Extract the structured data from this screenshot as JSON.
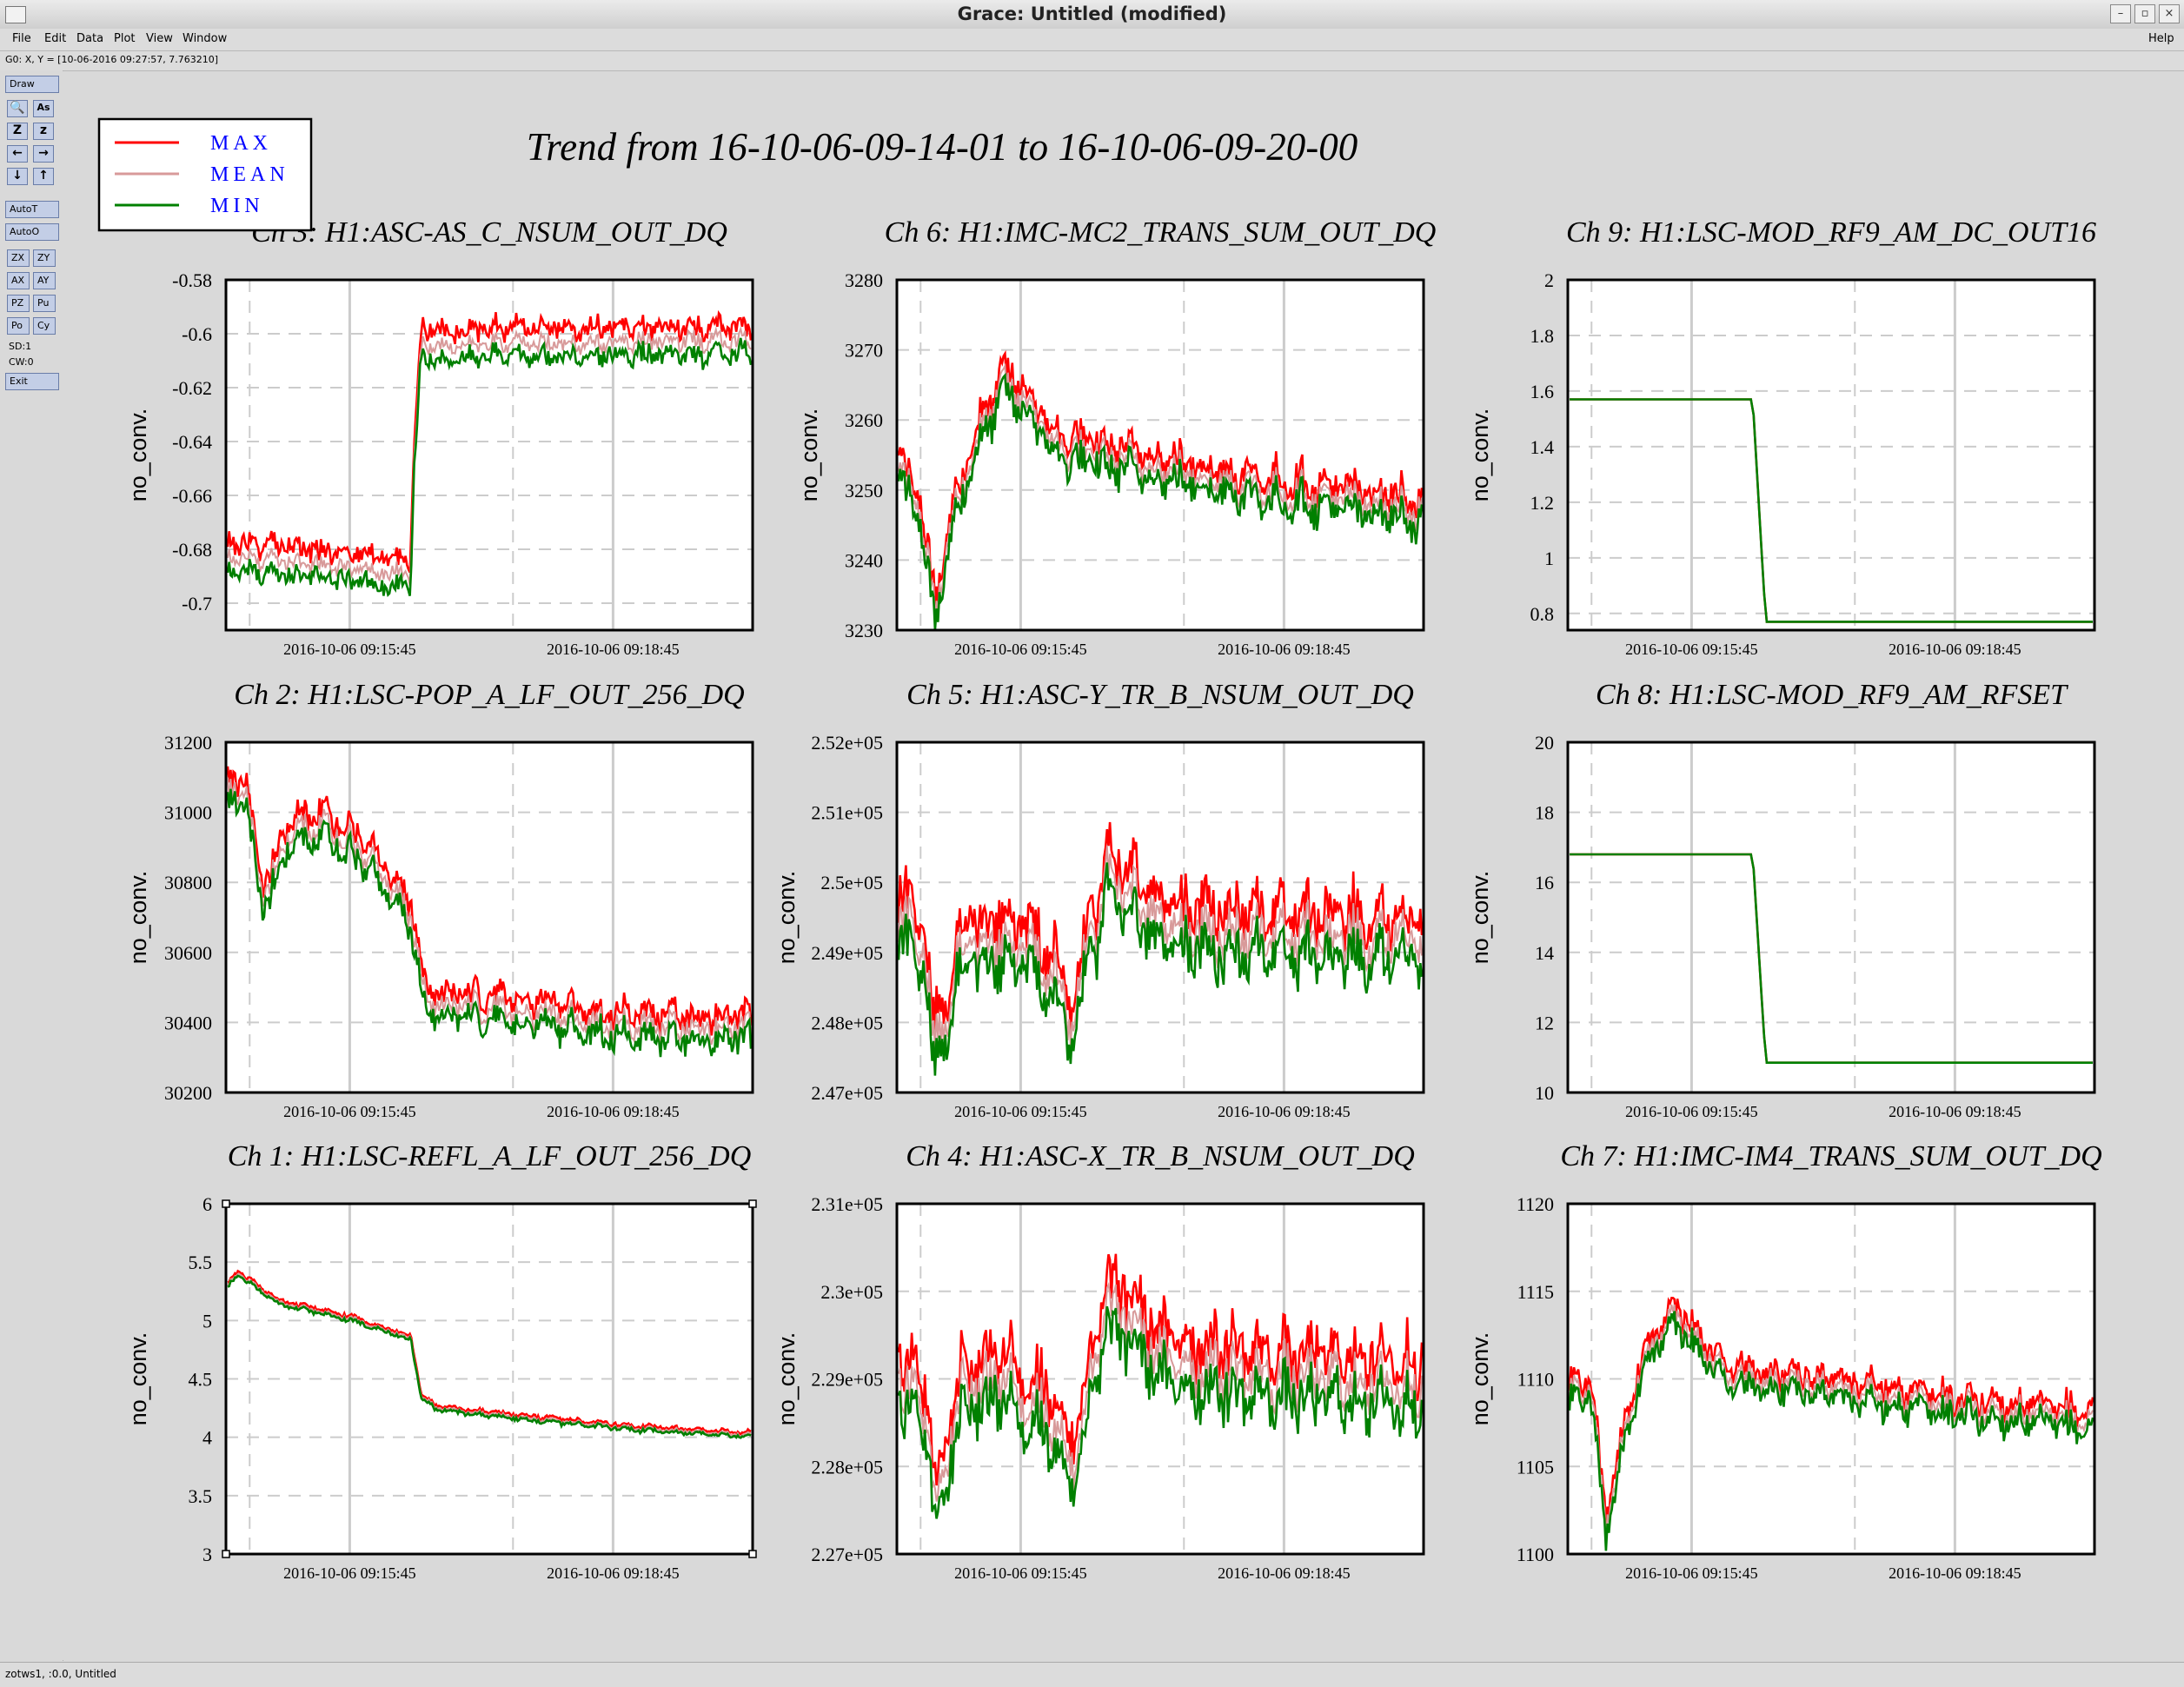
{
  "window": {
    "title": "Grace: Untitled (modified)"
  },
  "menu": {
    "items": [
      "File",
      "Edit",
      "Data",
      "Plot",
      "View",
      "Window"
    ],
    "help": "Help"
  },
  "locator": {
    "text": "G0: X, Y = [10-06-2016 09:27:57, 7.763210]"
  },
  "toolbar": {
    "draw": "Draw",
    "icon_buttons": [
      [
        "🔍",
        "As"
      ],
      [
        "Z",
        "z"
      ],
      [
        "←",
        "→"
      ],
      [
        "↓",
        "↑"
      ]
    ],
    "autot": "AutoT",
    "autoo": "AutoO",
    "pair_buttons": [
      [
        "ZX",
        "ZY"
      ],
      [
        "AX",
        "AY"
      ],
      [
        "PZ",
        "Pu"
      ],
      [
        "Po",
        "Cy"
      ]
    ],
    "sd": "SD:1",
    "cw": "CW:0",
    "exit": "Exit"
  },
  "status": {
    "text": "zotws1, :0.0, Untitled"
  },
  "page_title": "Trend from 16-10-06-09-14-01 to 16-10-06-09-20-00",
  "legend": [
    {
      "label": "MAX",
      "color": "#ff0000"
    },
    {
      "label": "MEAN",
      "color": "#d89a9a"
    },
    {
      "label": "MIN",
      "color": "#008000"
    }
  ],
  "label_color": "#0000ff",
  "chart_data": [
    {
      "type": "line",
      "title": "Ch 3: H1:ASC-AS_C_NSUM_OUT_DQ",
      "ylabel": "no_conv.",
      "x_ticks": [
        "2016-10-06 09:15:45",
        "2016-10-06 09:18:45"
      ],
      "y_ticks": [
        "-0.58",
        "-0.6",
        "-0.62",
        "-0.64",
        "-0.66",
        "-0.68",
        "-0.7"
      ],
      "ylim": [
        -0.71,
        -0.58
      ],
      "grid": true,
      "shape": {
        "kind": "noise",
        "anchors": [
          [
            0,
            -0.683
          ],
          [
            0.35,
            -0.69
          ],
          [
            0.355,
            -0.65
          ],
          [
            0.37,
            -0.605
          ],
          [
            1,
            -0.603
          ]
        ],
        "noise": 0.003,
        "spread": 0.006,
        "seed": 3
      }
    },
    {
      "type": "line",
      "title": "Ch 6: H1:IMC-MC2_TRANS_SUM_OUT_DQ",
      "ylabel": "no_conv.",
      "x_ticks": [
        "2016-10-06 09:15:45",
        "2016-10-06 09:18:45"
      ],
      "y_ticks": [
        "3280",
        "3270",
        "3260",
        "3250",
        "3240",
        "3230"
      ],
      "ylim": [
        3230,
        3280
      ],
      "grid": true,
      "shape": {
        "kind": "noise",
        "anchors": [
          [
            0,
            3252
          ],
          [
            0.04,
            3248
          ],
          [
            0.07,
            3232
          ],
          [
            0.1,
            3245
          ],
          [
            0.14,
            3255
          ],
          [
            0.2,
            3265
          ],
          [
            0.25,
            3262
          ],
          [
            0.3,
            3256
          ],
          [
            0.5,
            3253
          ],
          [
            0.7,
            3250
          ],
          [
            1,
            3247
          ]
        ],
        "noise": 2.2,
        "spread": 1.8,
        "seed": 6
      }
    },
    {
      "type": "line",
      "title": "Ch 9: H1:LSC-MOD_RF9_AM_DC_OUT16",
      "ylabel": "no_conv.",
      "x_ticks": [
        "2016-10-06 09:15:45",
        "2016-10-06 09:18:45"
      ],
      "y_ticks": [
        "2",
        "1.8",
        "1.6",
        "1.4",
        "1.2",
        "1",
        "0.8"
      ],
      "ylim": [
        0.74,
        2
      ],
      "grid": true,
      "shape": {
        "kind": "step",
        "anchors": [
          [
            0,
            1.57
          ],
          [
            0.35,
            1.57
          ],
          [
            0.375,
            0.77
          ],
          [
            1,
            0.77
          ]
        ],
        "noise": 0,
        "spread": 0,
        "seed": 9
      }
    },
    {
      "type": "line",
      "title": "Ch 2: H1:LSC-POP_A_LF_OUT_256_DQ",
      "ylabel": "no_conv.",
      "x_ticks": [
        "2016-10-06 09:15:45",
        "2016-10-06 09:18:45"
      ],
      "y_ticks": [
        "31200",
        "31000",
        "30800",
        "30600",
        "30400",
        "30200"
      ],
      "ylim": [
        30200,
        31200
      ],
      "grid": true,
      "shape": {
        "kind": "noise",
        "anchors": [
          [
            0,
            31050
          ],
          [
            0.03,
            31080
          ],
          [
            0.07,
            30750
          ],
          [
            0.12,
            30950
          ],
          [
            0.2,
            30950
          ],
          [
            0.3,
            30820
          ],
          [
            0.35,
            30700
          ],
          [
            0.38,
            30450
          ],
          [
            0.6,
            30420
          ],
          [
            0.8,
            30380
          ],
          [
            1,
            30380
          ]
        ],
        "noise": 35,
        "spread": 40,
        "seed": 2
      }
    },
    {
      "type": "line",
      "title": "Ch 5: H1:ASC-Y_TR_B_NSUM_OUT_DQ",
      "ylabel": "no_conv.",
      "x_ticks": [
        "2016-10-06 09:15:45",
        "2016-10-06 09:18:45"
      ],
      "y_ticks": [
        "2.52e+05",
        "2.51e+05",
        "2.5e+05",
        "2.49e+05",
        "2.48e+05",
        "2.47e+05"
      ],
      "ylim": [
        247000,
        252000
      ],
      "grid": true,
      "shape": {
        "kind": "noise",
        "anchors": [
          [
            0,
            249500
          ],
          [
            0.05,
            249000
          ],
          [
            0.07,
            247500
          ],
          [
            0.12,
            249000
          ],
          [
            0.2,
            249200
          ],
          [
            0.3,
            248600
          ],
          [
            0.33,
            248000
          ],
          [
            0.36,
            249000
          ],
          [
            0.4,
            250000
          ],
          [
            0.45,
            249800
          ],
          [
            0.5,
            249300
          ],
          [
            0.7,
            249200
          ],
          [
            1,
            249200
          ]
        ],
        "noise": 350,
        "spread": 350,
        "seed": 5
      }
    },
    {
      "type": "line",
      "title": "Ch 8: H1:LSC-MOD_RF9_AM_RFSET",
      "ylabel": "no_conv.",
      "x_ticks": [
        "2016-10-06 09:15:45",
        "2016-10-06 09:18:45"
      ],
      "y_ticks": [
        "20",
        "18",
        "16",
        "14",
        "12",
        "10"
      ],
      "ylim": [
        10,
        20
      ],
      "grid": true,
      "shape": {
        "kind": "step",
        "anchors": [
          [
            0,
            16.8
          ],
          [
            0.35,
            16.8
          ],
          [
            0.375,
            10.85
          ],
          [
            1,
            10.85
          ]
        ],
        "noise": 0,
        "spread": 0,
        "seed": 8
      }
    },
    {
      "type": "line",
      "title": "Ch 1: H1:LSC-REFL_A_LF_OUT_256_DQ",
      "ylabel": "no_conv.",
      "x_ticks": [
        "2016-10-06 09:15:45",
        "2016-10-06 09:18:45"
      ],
      "y_ticks": [
        "6",
        "5.5",
        "5",
        "4.5",
        "4",
        "3.5",
        "3"
      ],
      "ylim": [
        3,
        6
      ],
      "grid": true,
      "shape": {
        "kind": "noise",
        "anchors": [
          [
            0,
            5.3
          ],
          [
            0.02,
            5.4
          ],
          [
            0.1,
            5.15
          ],
          [
            0.25,
            5.0
          ],
          [
            0.35,
            4.85
          ],
          [
            0.37,
            4.35
          ],
          [
            0.4,
            4.25
          ],
          [
            0.6,
            4.15
          ],
          [
            0.8,
            4.07
          ],
          [
            1,
            4.02
          ]
        ],
        "noise": 0.015,
        "spread": 0.02,
        "seed": 1
      }
    },
    {
      "type": "line",
      "title": "Ch 4: H1:ASC-X_TR_B_NSUM_OUT_DQ",
      "ylabel": "no_conv.",
      "x_ticks": [
        "2016-10-06 09:15:45",
        "2016-10-06 09:18:45"
      ],
      "y_ticks": [
        "2.31e+05",
        "2.3e+05",
        "2.29e+05",
        "2.28e+05",
        "2.27e+05"
      ],
      "ylim": [
        227000,
        231000
      ],
      "grid": true,
      "shape": {
        "kind": "noise",
        "anchors": [
          [
            0,
            229000
          ],
          [
            0.05,
            228700
          ],
          [
            0.07,
            227600
          ],
          [
            0.12,
            228800
          ],
          [
            0.2,
            229000
          ],
          [
            0.3,
            228500
          ],
          [
            0.33,
            228000
          ],
          [
            0.36,
            228700
          ],
          [
            0.4,
            229800
          ],
          [
            0.45,
            229600
          ],
          [
            0.5,
            229200
          ],
          [
            0.7,
            229000
          ],
          [
            1,
            228900
          ]
        ],
        "noise": 280,
        "spread": 300,
        "seed": 4
      }
    },
    {
      "type": "line",
      "title": "Ch 7: H1:IMC-IM4_TRANS_SUM_OUT_DQ",
      "ylabel": "no_conv.",
      "x_ticks": [
        "2016-10-06 09:15:45",
        "2016-10-06 09:18:45"
      ],
      "y_ticks": [
        "1120",
        "1115",
        "1110",
        "1105",
        "1100"
      ],
      "ylim": [
        1100,
        1120
      ],
      "grid": true,
      "shape": {
        "kind": "noise",
        "anchors": [
          [
            0,
            1109
          ],
          [
            0.04,
            1109.5
          ],
          [
            0.07,
            1101.5
          ],
          [
            0.1,
            1106
          ],
          [
            0.14,
            1111
          ],
          [
            0.2,
            1113.5
          ],
          [
            0.25,
            1112
          ],
          [
            0.3,
            1110
          ],
          [
            0.5,
            1109.5
          ],
          [
            0.7,
            1108.5
          ],
          [
            1,
            1107.5
          ]
        ],
        "noise": 0.7,
        "spread": 0.6,
        "seed": 7
      }
    }
  ]
}
